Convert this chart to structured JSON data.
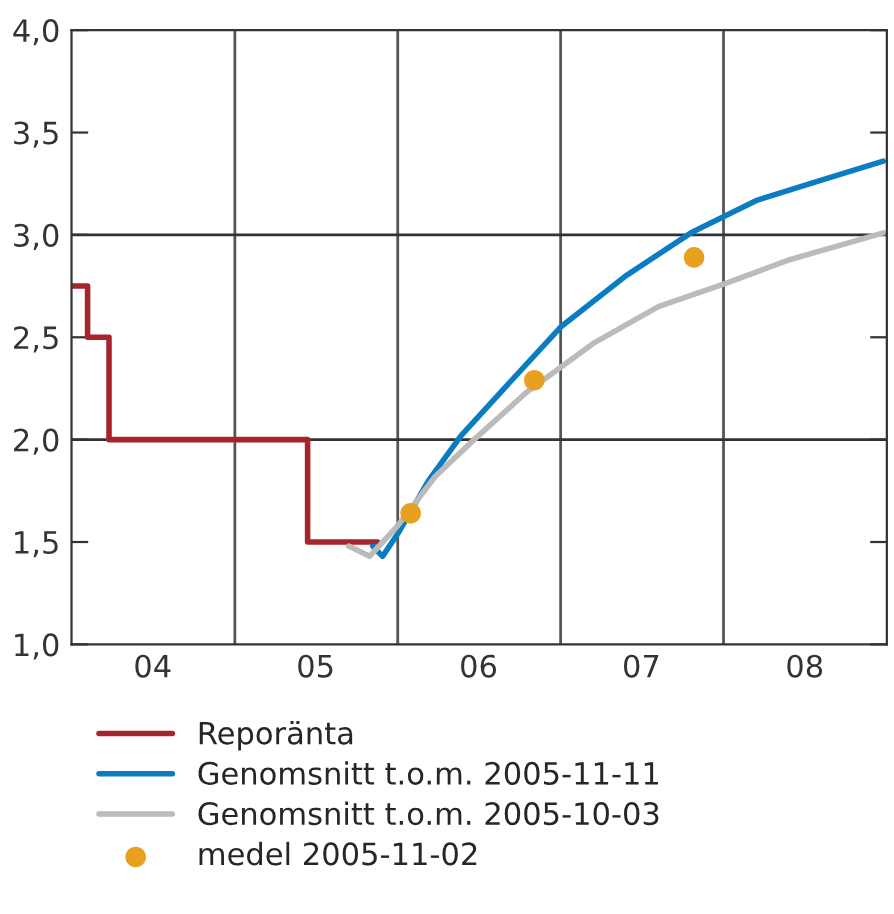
{
  "chart_data": {
    "type": "line",
    "xlim": [
      "2004-01-01",
      "2009-01-01"
    ],
    "xticks": [
      {
        "value": "2004-07-01",
        "label": "04"
      },
      {
        "value": "2005-07-01",
        "label": "05"
      },
      {
        "value": "2006-07-01",
        "label": "06"
      },
      {
        "value": "2007-07-01",
        "label": "07"
      },
      {
        "value": "2008-07-01",
        "label": "08"
      }
    ],
    "ylim": [
      1.0,
      4.0
    ],
    "yticks": [
      {
        "value": 1.0,
        "label": "1,0"
      },
      {
        "value": 1.5,
        "label": "1,5"
      },
      {
        "value": 2.0,
        "label": "2,0"
      },
      {
        "value": 2.5,
        "label": "2,5"
      },
      {
        "value": 3.0,
        "label": "3,0"
      },
      {
        "value": 3.5,
        "label": "3,5"
      },
      {
        "value": 4.0,
        "label": "4,0"
      }
    ],
    "ref_lines": [
      {
        "axis": "x",
        "value": "2005-01-01",
        "color": "#555555"
      },
      {
        "axis": "x",
        "value": "2006-01-01",
        "color": "#555555"
      },
      {
        "axis": "x",
        "value": "2007-01-01",
        "color": "#555555"
      },
      {
        "axis": "x",
        "value": "2008-01-01",
        "color": "#555555"
      },
      {
        "axis": "y",
        "value": 2.0,
        "color": "#333333"
      },
      {
        "axis": "y",
        "value": 3.0,
        "color": "#333333"
      }
    ],
    "legend": "bottom",
    "series": [
      {
        "name": "Reporänta",
        "type": "step",
        "color": "#a6252d",
        "x": [
          "2004-01-01",
          "2004-02-06",
          "2004-03-25",
          "2005-06-13",
          "2005-11-17"
        ],
        "values": [
          2.75,
          2.5,
          2.0,
          1.5,
          1.5
        ]
      },
      {
        "name": "Genomsnitt t.o.m. 2005-11-11",
        "color": "#0a7cc1",
        "x": [
          "2005-11-06",
          "2005-11-28",
          "2006-01-01",
          "2006-03-11",
          "2006-05-23",
          "2006-08-19",
          "2007-01-01",
          "2007-05-27",
          "2007-10-20",
          "2008-03-17",
          "2008-08-11",
          "2008-12-24"
        ],
        "values": [
          1.48,
          1.43,
          1.54,
          1.8,
          2.02,
          2.23,
          2.55,
          2.8,
          3.01,
          3.17,
          3.27,
          3.36
        ]
      },
      {
        "name": "Genomsnitt t.o.m. 2005-10-03",
        "color": "#bbbbbb",
        "x": [
          "2005-09-13",
          "2005-10-30",
          "2006-01-01",
          "2006-03-26",
          "2006-06-21",
          "2006-10-16",
          "2007-03-15",
          "2007-08-08",
          "2008-01-01",
          "2008-05-30",
          "2008-12-24"
        ],
        "values": [
          1.48,
          1.43,
          1.58,
          1.82,
          2.0,
          2.23,
          2.47,
          2.65,
          2.76,
          2.88,
          3.01
        ]
      },
      {
        "name": "medel 2005-11-02",
        "type": "scatter",
        "color": "#e8a020",
        "x": [
          "2006-01-30",
          "2006-11-03",
          "2007-10-27"
        ],
        "values": [
          1.64,
          2.29,
          2.89
        ]
      }
    ]
  }
}
